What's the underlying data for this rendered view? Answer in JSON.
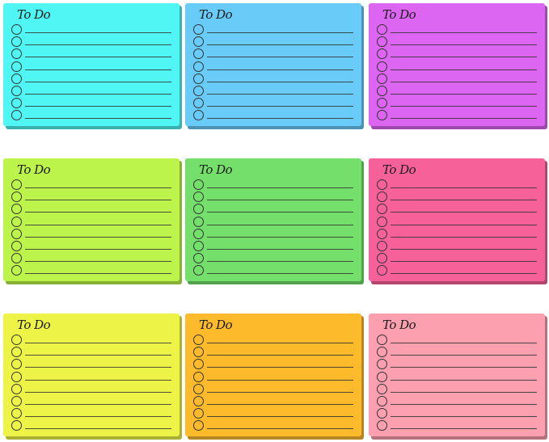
{
  "pads": [
    {
      "title": "To Do",
      "color": "#4ff6f3"
    },
    {
      "title": "To Do",
      "color": "#68cbf8"
    },
    {
      "title": "To Do",
      "color": "#dc66f2"
    },
    {
      "title": "To Do",
      "color": "#bdf44c"
    },
    {
      "title": "To Do",
      "color": "#74e06b"
    },
    {
      "title": "To Do",
      "color": "#f7619a"
    },
    {
      "title": "To Do",
      "color": "#eef447"
    },
    {
      "title": "To Do",
      "color": "#fdbb2c"
    },
    {
      "title": "To Do",
      "color": "#fc9fae"
    }
  ],
  "checklist_rows_per_pad": 8
}
